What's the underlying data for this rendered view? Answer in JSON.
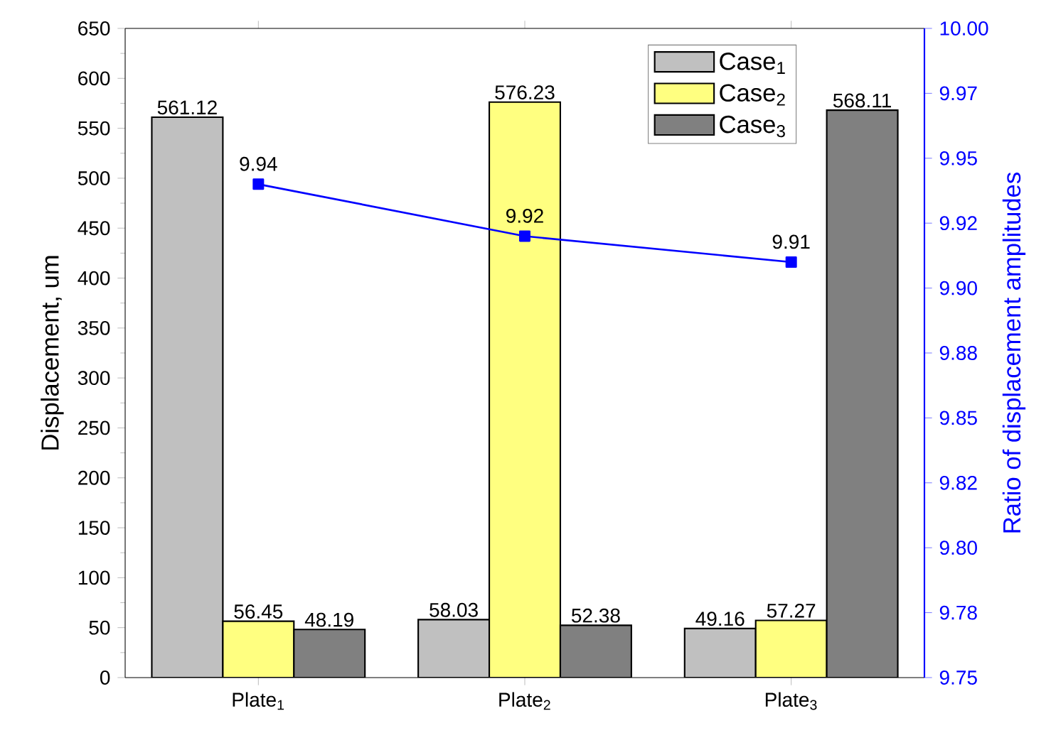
{
  "chart_data": {
    "type": "bar",
    "categories": [
      "Plate$_{1}$",
      "Plate$_{2}$",
      "Plate$_{3}$"
    ],
    "series": [
      {
        "name": "Case$_{1}$",
        "color": "#c0c0c0",
        "values": [
          561.12,
          58.03,
          49.16
        ]
      },
      {
        "name": "Case$_{2}$",
        "color": "#ffff80",
        "values": [
          56.45,
          576.23,
          57.27
        ]
      },
      {
        "name": "Case$_{3}$",
        "color": "#808080",
        "values": [
          48.19,
          52.38,
          568.11
        ]
      },
      {
        "type": "line",
        "axis": "y2",
        "color": "#0000ff",
        "values": [
          9.94,
          9.92,
          9.91
        ]
      }
    ],
    "ylabel": "Displacement, um",
    "y2label": "Ratio of displacement amplitudes",
    "ylim": [
      0,
      650
    ],
    "yticks": [
      0,
      50,
      100,
      150,
      200,
      250,
      300,
      350,
      400,
      450,
      500,
      550,
      600,
      650
    ],
    "y2lim": [
      9.75,
      10.0
    ],
    "y2ticks": [
      9.75,
      {
        "value": 9.775,
        "label": "9.78"
      },
      {
        "value": 9.8,
        "label": "9.80"
      },
      {
        "value": 9.825,
        "label": "9.82"
      },
      9.85,
      {
        "value": 9.875,
        "label": "9.88"
      },
      {
        "value": 9.9,
        "label": "9.90"
      },
      {
        "value": 9.925,
        "label": "9.92"
      },
      9.95,
      {
        "value": 9.975,
        "label": "9.97"
      },
      {
        "value": 10.0,
        "label": "10.00"
      }
    ],
    "legend": "top right",
    "data_labels": true,
    "marker": "square"
  }
}
